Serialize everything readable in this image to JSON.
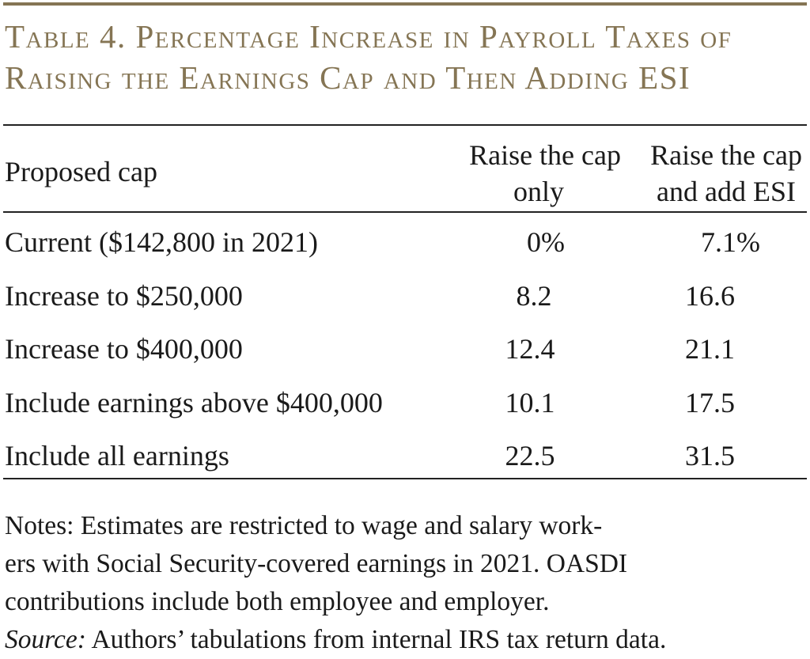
{
  "title_lines": [
    "Table 4. Percentage Increase in Payroll Taxes of",
    "Raising the Earnings Cap and Then Adding ESI"
  ],
  "headers": {
    "col0": "Proposed cap",
    "col1_line1": "Raise the cap",
    "col1_line2": "only",
    "col2_line1": "Raise the cap",
    "col2_line2": "and add ESI"
  },
  "rows": [
    {
      "label": "Current ($142,800 in 2021)",
      "raise_cap_only": "0%",
      "raise_cap_add_esi": "7.1%"
    },
    {
      "label": "Increase to $250,000",
      "raise_cap_only": "8.2",
      "raise_cap_add_esi": "16.6"
    },
    {
      "label": "Increase to $400,000",
      "raise_cap_only": "12.4",
      "raise_cap_add_esi": "21.1"
    },
    {
      "label": "Include earnings above $400,000",
      "raise_cap_only": "10.1",
      "raise_cap_add_esi": "17.5"
    },
    {
      "label": "Include all earnings",
      "raise_cap_only": "22.5",
      "raise_cap_add_esi": "31.5"
    }
  ],
  "notes_lines": [
    "Notes: Estimates are restricted to wage and salary work-",
    "ers with Social Security-covered earnings in 2021.  OASDI",
    "contributions include both employee and employer."
  ],
  "source_label": "Source:",
  "source_text": " Authors’ tabulations from internal IRS tax return data.",
  "colors": {
    "accent": "#857554",
    "text": "#1a1a1a"
  }
}
